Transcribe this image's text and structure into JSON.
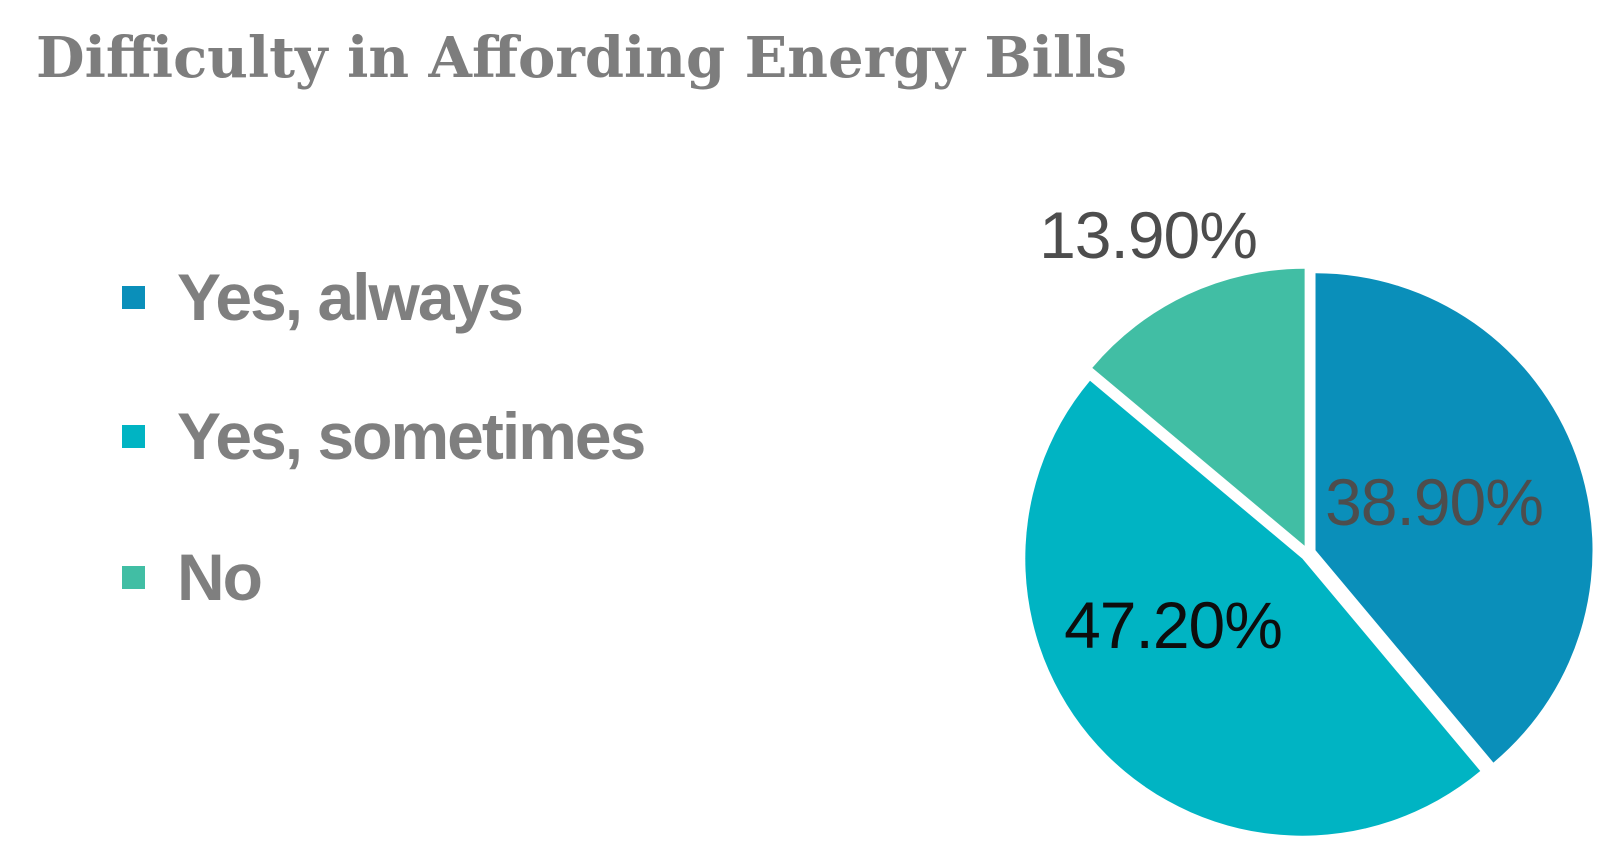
{
  "title": "Difficulty in Affording Energy Bills",
  "title_color": "#7d7d7d",
  "legend": {
    "position": "left",
    "text_color": "#7f7f7f",
    "items": [
      {
        "label": "Yes, always",
        "color": "#0a8fba"
      },
      {
        "label": "Yes, sometimes",
        "color": "#00b4c3"
      },
      {
        "label": "No",
        "color": "#41bea4"
      }
    ]
  },
  "chart_data": {
    "type": "pie",
    "title": "Difficulty in Affording Energy Bills",
    "categories": [
      "Yes, always",
      "Yes, sometimes",
      "No"
    ],
    "values": [
      38.9,
      47.2,
      13.9
    ],
    "data_labels": [
      "38.90%",
      "47.20%",
      "13.90%"
    ],
    "data_label_colors": [
      "#4d4d4d",
      "#0d0d0d",
      "#4d4d4d"
    ],
    "data_label_placement": [
      "inside",
      "inside",
      "outside"
    ],
    "slice_colors": [
      "#0a8fba",
      "#00b4c3",
      "#41bea4"
    ],
    "start_angle_deg": 0,
    "direction": "clockwise",
    "exploded": true,
    "background": "#ffffff",
    "legend_position": "left"
  }
}
